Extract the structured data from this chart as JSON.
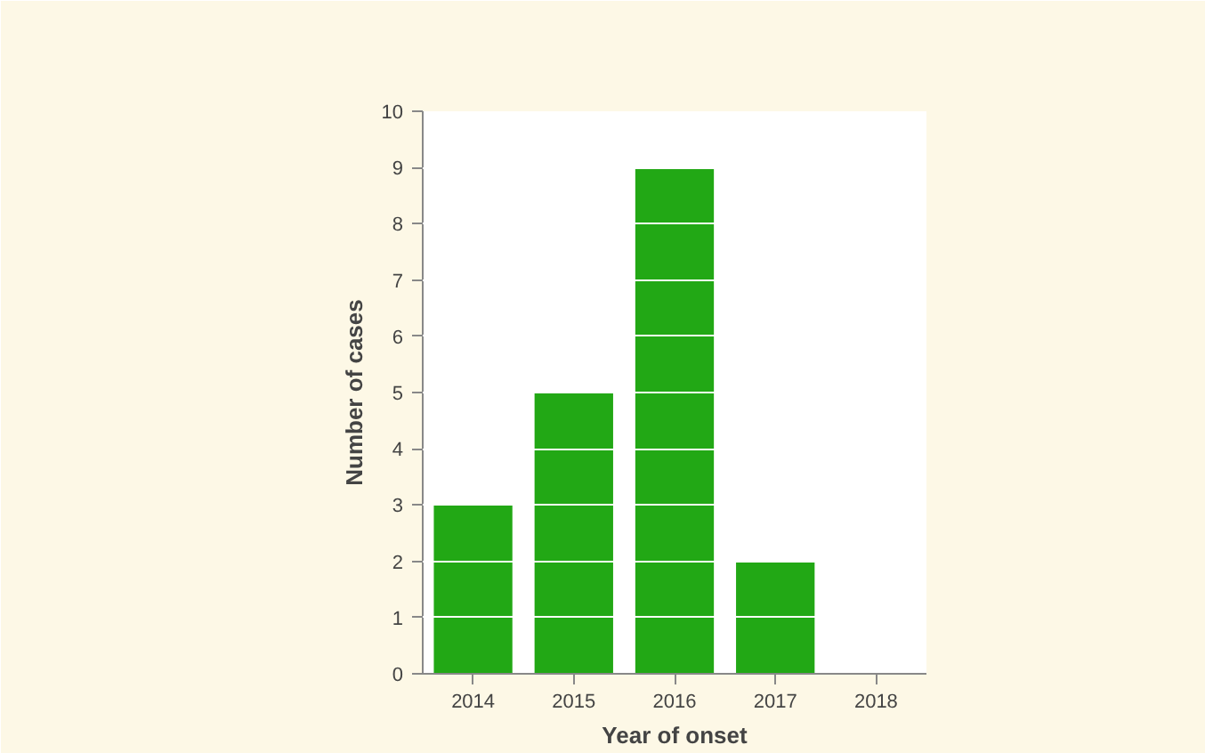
{
  "chart_data": {
    "type": "bar",
    "xlabel": "Year of onset",
    "ylabel": "Number of cases",
    "categories": [
      "2014",
      "2015",
      "2016",
      "2017",
      "2018"
    ],
    "values": [
      3,
      5,
      9,
      2,
      0
    ],
    "color": "#22a815",
    "ylim": [
      0,
      10
    ],
    "yticks": [
      0,
      1,
      2,
      3,
      4,
      5,
      6,
      7,
      8,
      9,
      10
    ],
    "grid": "y"
  }
}
